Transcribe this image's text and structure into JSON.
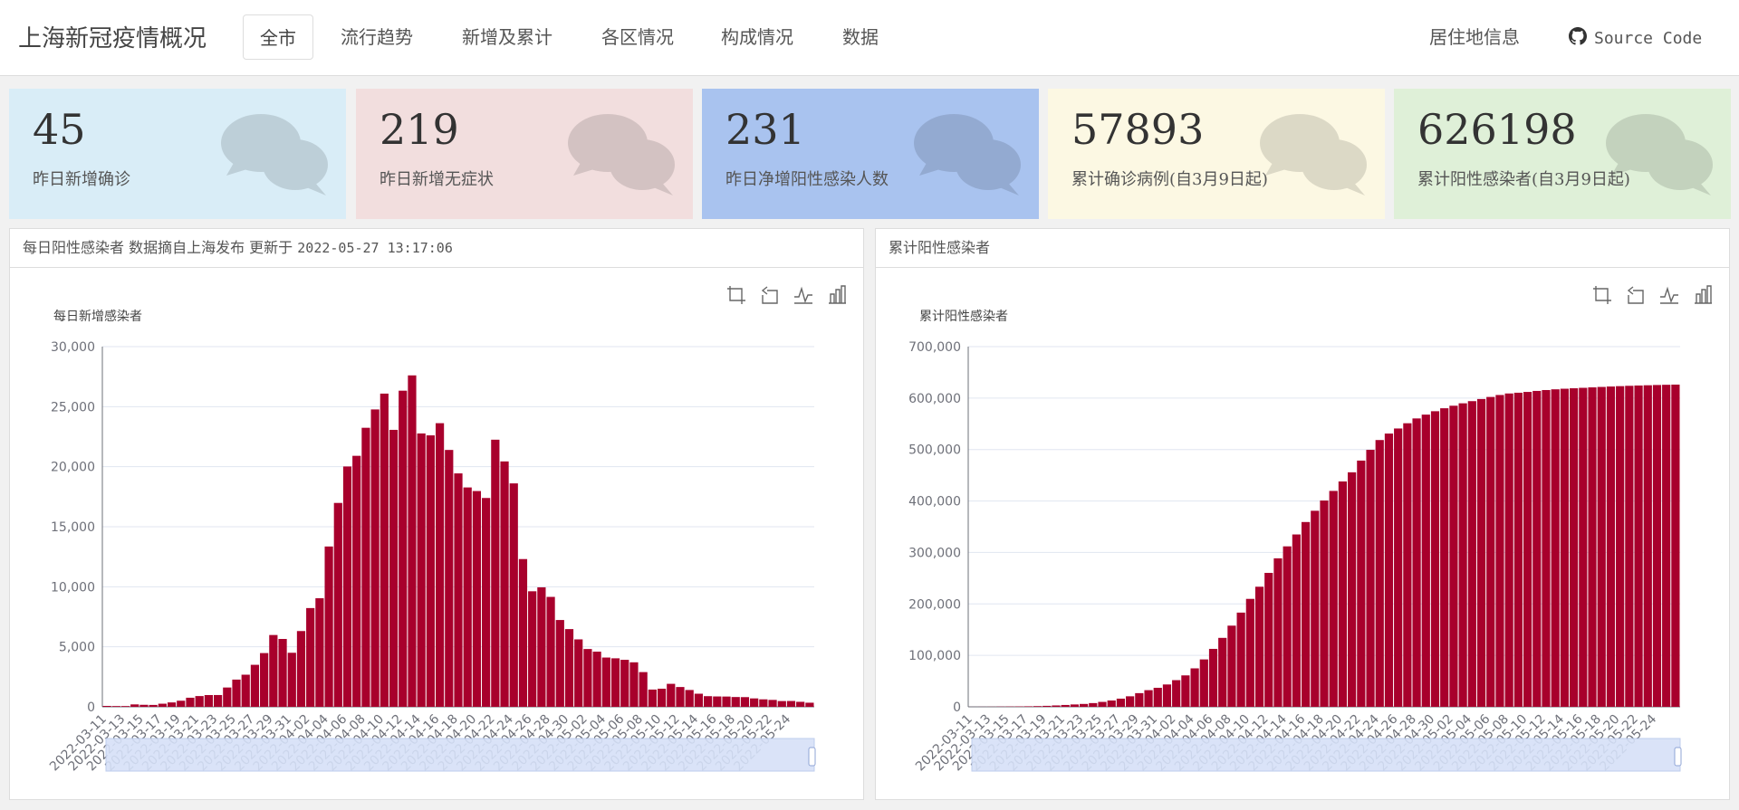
{
  "navbar": {
    "brand": "上海新冠疫情概况",
    "tabs": [
      {
        "label": "全市",
        "active": true
      },
      {
        "label": "流行趋势"
      },
      {
        "label": "新增及累计"
      },
      {
        "label": "各区情况"
      },
      {
        "label": "构成情况"
      },
      {
        "label": "数据"
      }
    ],
    "residence": "居住地信息",
    "source_code": "Source Code"
  },
  "stats": [
    {
      "value": "45",
      "label": "昨日新增确诊",
      "color": "#d9edf7"
    },
    {
      "value": "219",
      "label": "昨日新增无症状",
      "color": "#f2dede"
    },
    {
      "value": "231",
      "label": "昨日净增阳性感染人数",
      "color": "#a9c3ef"
    },
    {
      "value": "57893",
      "label": "累计确诊病例(自3月9日起)",
      "color": "#fcf8e3"
    },
    {
      "value": "626198",
      "label": "累计阳性感染者(自3月9日起)",
      "color": "#dff0d8"
    }
  ],
  "panels": {
    "left": {
      "heading": "每日阳性感染者 数据摘自上海发布 更新于",
      "updated": "2022-05-27 13:17:06"
    },
    "right": {
      "heading": "累计阳性感染者"
    }
  },
  "chart_data": [
    {
      "type": "bar",
      "title": "每日新增感染者",
      "x_start": "2022-03-11",
      "x_tick_labels": [
        "2022-03-11",
        "2022-03-13",
        "2022-03-15",
        "2022-03-17",
        "2022-03-19",
        "2022-03-21",
        "2022-03-23",
        "2022-03-25",
        "2022-03-27",
        "2022-03-29",
        "2022-03-31",
        "2022-04-02",
        "2022-04-04",
        "2022-04-06",
        "2022-04-08",
        "2022-04-10",
        "2022-04-12",
        "2022-04-14",
        "2022-04-16",
        "2022-04-18",
        "2022-04-20",
        "2022-04-22",
        "2022-04-24",
        "2022-04-26",
        "2022-04-28",
        "2022-04-30",
        "2022-05-02",
        "2022-05-04",
        "2022-05-06",
        "2022-05-08",
        "2022-05-10",
        "2022-05-12",
        "2022-05-14",
        "2022-05-16",
        "2022-05-18",
        "2022-05-20",
        "2022-05-22",
        "2022-05-24"
      ],
      "y_ticks": [
        "0",
        "5,000",
        "10,000",
        "15,000",
        "20,000",
        "25,000",
        "30,000"
      ],
      "ylim": [
        0,
        30000
      ],
      "color": "#a8002c",
      "values": [
        76,
        64,
        65,
        202,
        169,
        158,
        260,
        366,
        509,
        758,
        896,
        981,
        983,
        1609,
        2269,
        2676,
        3500,
        4477,
        5982,
        5653,
        4502,
        6311,
        8226,
        9044,
        13354,
        16982,
        20018,
        20906,
        23241,
        24768,
        26087,
        23068,
        26330,
        27605,
        22768,
        22609,
        23624,
        21395,
        19442,
        18271,
        17972,
        17394,
        22248,
        20439,
        18609,
        12307,
        9624,
        9953,
        9156,
        7231,
        6474,
        5618,
        4815,
        4596,
        4105,
        4041,
        3916,
        3708,
        2893,
        1438,
        1510,
        1916,
        1649,
        1401,
        1092,
        888,
        864,
        856,
        816,
        808,
        701,
        624,
        577,
        480,
        487,
        418,
        343
      ]
    },
    {
      "type": "bar",
      "title": "累计阳性感染者",
      "x_start": "2022-03-11",
      "x_tick_labels": [
        "2022-03-11",
        "2022-03-13",
        "2022-03-15",
        "2022-03-17",
        "2022-03-19",
        "2022-03-21",
        "2022-03-23",
        "2022-03-25",
        "2022-03-27",
        "2022-03-29",
        "2022-03-31",
        "2022-04-02",
        "2022-04-04",
        "2022-04-06",
        "2022-04-08",
        "2022-04-10",
        "2022-04-12",
        "2022-04-14",
        "2022-04-16",
        "2022-04-18",
        "2022-04-20",
        "2022-04-22",
        "2022-04-24",
        "2022-04-26",
        "2022-04-28",
        "2022-04-30",
        "2022-05-02",
        "2022-05-04",
        "2022-05-06",
        "2022-05-08",
        "2022-05-10",
        "2022-05-12",
        "2022-05-14",
        "2022-05-16",
        "2022-05-18",
        "2022-05-20",
        "2022-05-22",
        "2022-05-24"
      ],
      "y_ticks": [
        "0",
        "100,000",
        "200,000",
        "300,000",
        "400,000",
        "500,000",
        "600,000",
        "700,000"
      ],
      "ylim": [
        0,
        700000
      ],
      "color": "#a8002c",
      "cumulative_of_first": true,
      "final_total": 626198
    }
  ]
}
